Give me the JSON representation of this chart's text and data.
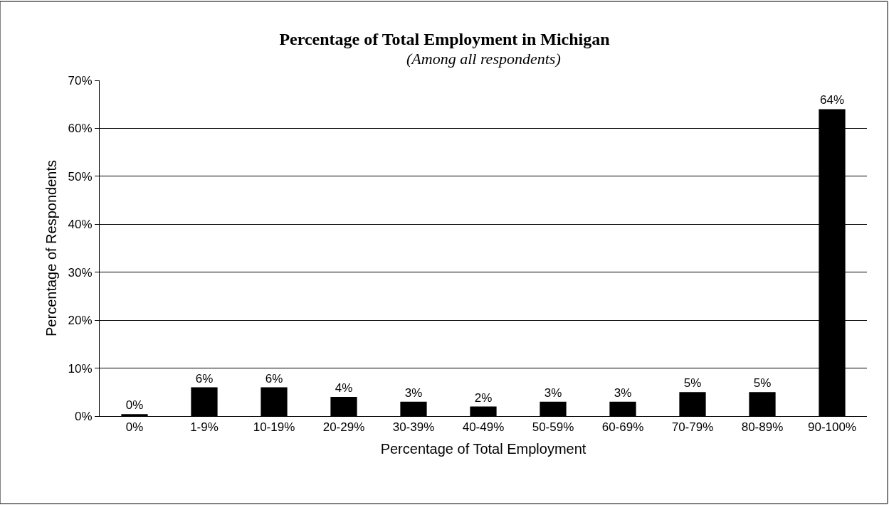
{
  "chart_data": {
    "type": "bar",
    "title": "Percentage of Total Employment in Michigan",
    "subtitle": "(Among all respondents)",
    "xlabel": "Percentage of Total Employment",
    "ylabel": "Percentage of Respondents",
    "categories": [
      "0%",
      "1-9%",
      "10-19%",
      "20-29%",
      "30-39%",
      "40-49%",
      "50-59%",
      "60-69%",
      "70-79%",
      "80-89%",
      "90-100%"
    ],
    "values": [
      0.4,
      6,
      6,
      4,
      3,
      2,
      3,
      3,
      5,
      5,
      64
    ],
    "value_labels": [
      "0%",
      "6%",
      "6%",
      "4%",
      "3%",
      "2%",
      "3%",
      "3%",
      "5%",
      "5%",
      "64%"
    ],
    "color": "#000000",
    "ylim": [
      0,
      70
    ],
    "yticks": [
      {
        "value": 0,
        "label": "0%"
      },
      {
        "value": 10,
        "label": "10%"
      },
      {
        "value": 20,
        "label": "20%"
      },
      {
        "value": 30,
        "label": "30%"
      },
      {
        "value": 40,
        "label": "40%"
      },
      {
        "value": 50,
        "label": "50%"
      },
      {
        "value": 60,
        "label": "60%"
      },
      {
        "value": 70,
        "label": "70%"
      }
    ],
    "grid": "y"
  }
}
